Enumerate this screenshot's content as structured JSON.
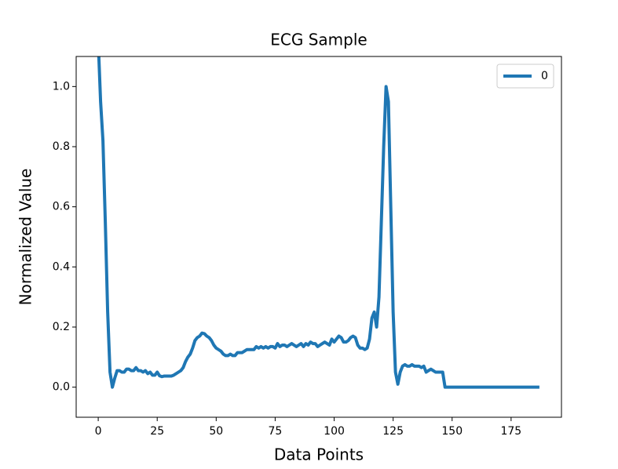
{
  "chart_data": {
    "type": "line",
    "title": "ECG Sample",
    "x_label": "Data Points",
    "y_label": "Normalized Value",
    "x": [
      0,
      1,
      2,
      3,
      4,
      5,
      6,
      7,
      8,
      9,
      10,
      11,
      12,
      13,
      14,
      15,
      16,
      17,
      18,
      19,
      20,
      21,
      22,
      23,
      24,
      25,
      26,
      27,
      28,
      29,
      30,
      31,
      32,
      33,
      34,
      35,
      36,
      37,
      38,
      39,
      40,
      41,
      42,
      43,
      44,
      45,
      46,
      47,
      48,
      49,
      50,
      51,
      52,
      53,
      54,
      55,
      56,
      57,
      58,
      59,
      60,
      61,
      62,
      63,
      64,
      65,
      66,
      67,
      68,
      69,
      70,
      71,
      72,
      73,
      74,
      75,
      76,
      77,
      78,
      79,
      80,
      81,
      82,
      83,
      84,
      85,
      86,
      87,
      88,
      89,
      90,
      91,
      92,
      93,
      94,
      95,
      96,
      97,
      98,
      99,
      100,
      101,
      102,
      103,
      104,
      105,
      106,
      107,
      108,
      109,
      110,
      111,
      112,
      113,
      114,
      115,
      116,
      117,
      118,
      119,
      120,
      121,
      122,
      123,
      124,
      125,
      126,
      127,
      128,
      129,
      130,
      131,
      132,
      133,
      134,
      135,
      136,
      137,
      138,
      139,
      140,
      141,
      142,
      143,
      144,
      145,
      146,
      147,
      148,
      149,
      150,
      151,
      152,
      153,
      154,
      155,
      156,
      157,
      158,
      159,
      160,
      161,
      162,
      163,
      164,
      165,
      166,
      167,
      168,
      169,
      170,
      171,
      172,
      173,
      174,
      175,
      176,
      177,
      178,
      179,
      180,
      181,
      182,
      183,
      184,
      185,
      186,
      187
    ],
    "series": [
      {
        "name": "0",
        "color": "#1f77b4",
        "values": [
          1.15,
          0.95,
          0.82,
          0.55,
          0.25,
          0.05,
          0.0,
          0.03,
          0.055,
          0.055,
          0.05,
          0.05,
          0.06,
          0.06,
          0.055,
          0.055,
          0.065,
          0.055,
          0.055,
          0.05,
          0.055,
          0.045,
          0.05,
          0.04,
          0.04,
          0.05,
          0.038,
          0.035,
          0.037,
          0.037,
          0.037,
          0.037,
          0.04,
          0.045,
          0.05,
          0.055,
          0.065,
          0.085,
          0.1,
          0.11,
          0.13,
          0.155,
          0.165,
          0.17,
          0.18,
          0.178,
          0.17,
          0.165,
          0.155,
          0.14,
          0.13,
          0.125,
          0.12,
          0.11,
          0.105,
          0.105,
          0.11,
          0.105,
          0.105,
          0.115,
          0.115,
          0.115,
          0.12,
          0.125,
          0.125,
          0.125,
          0.125,
          0.135,
          0.13,
          0.135,
          0.13,
          0.135,
          0.13,
          0.135,
          0.135,
          0.13,
          0.145,
          0.135,
          0.14,
          0.14,
          0.135,
          0.14,
          0.145,
          0.14,
          0.135,
          0.14,
          0.145,
          0.135,
          0.145,
          0.14,
          0.15,
          0.145,
          0.145,
          0.135,
          0.14,
          0.145,
          0.15,
          0.145,
          0.14,
          0.16,
          0.15,
          0.16,
          0.17,
          0.165,
          0.15,
          0.15,
          0.155,
          0.165,
          0.17,
          0.165,
          0.14,
          0.13,
          0.13,
          0.125,
          0.13,
          0.16,
          0.23,
          0.25,
          0.2,
          0.3,
          0.55,
          0.8,
          1.0,
          0.95,
          0.6,
          0.25,
          0.05,
          0.01,
          0.05,
          0.07,
          0.075,
          0.07,
          0.07,
          0.075,
          0.07,
          0.07,
          0.07,
          0.065,
          0.07,
          0.05,
          0.055,
          0.06,
          0.055,
          0.05,
          0.05,
          0.05,
          0.05,
          0.0,
          0,
          0,
          0,
          0,
          0,
          0,
          0,
          0,
          0,
          0,
          0,
          0,
          0,
          0,
          0,
          0,
          0,
          0,
          0,
          0,
          0,
          0,
          0,
          0,
          0,
          0,
          0,
          0,
          0,
          0,
          0,
          0,
          0,
          0,
          0,
          0,
          0,
          0,
          0,
          0
        ]
      }
    ],
    "xlim": [
      -9.35,
      196.35
    ],
    "ylim": [
      -0.1,
      1.1
    ],
    "xticks": [
      0,
      25,
      50,
      75,
      100,
      125,
      150,
      175
    ],
    "yticks": [
      {
        "value": 0,
        "label": "0.0"
      },
      {
        "value": 0.2,
        "label": "0.2"
      },
      {
        "value": 0.4,
        "label": "0.4"
      },
      {
        "value": 0.6,
        "label": "0.6"
      },
      {
        "value": 0.8,
        "label": "0.8"
      },
      {
        "value": 1,
        "label": "1.0"
      }
    ],
    "legend": "upper right",
    "grid": false
  }
}
